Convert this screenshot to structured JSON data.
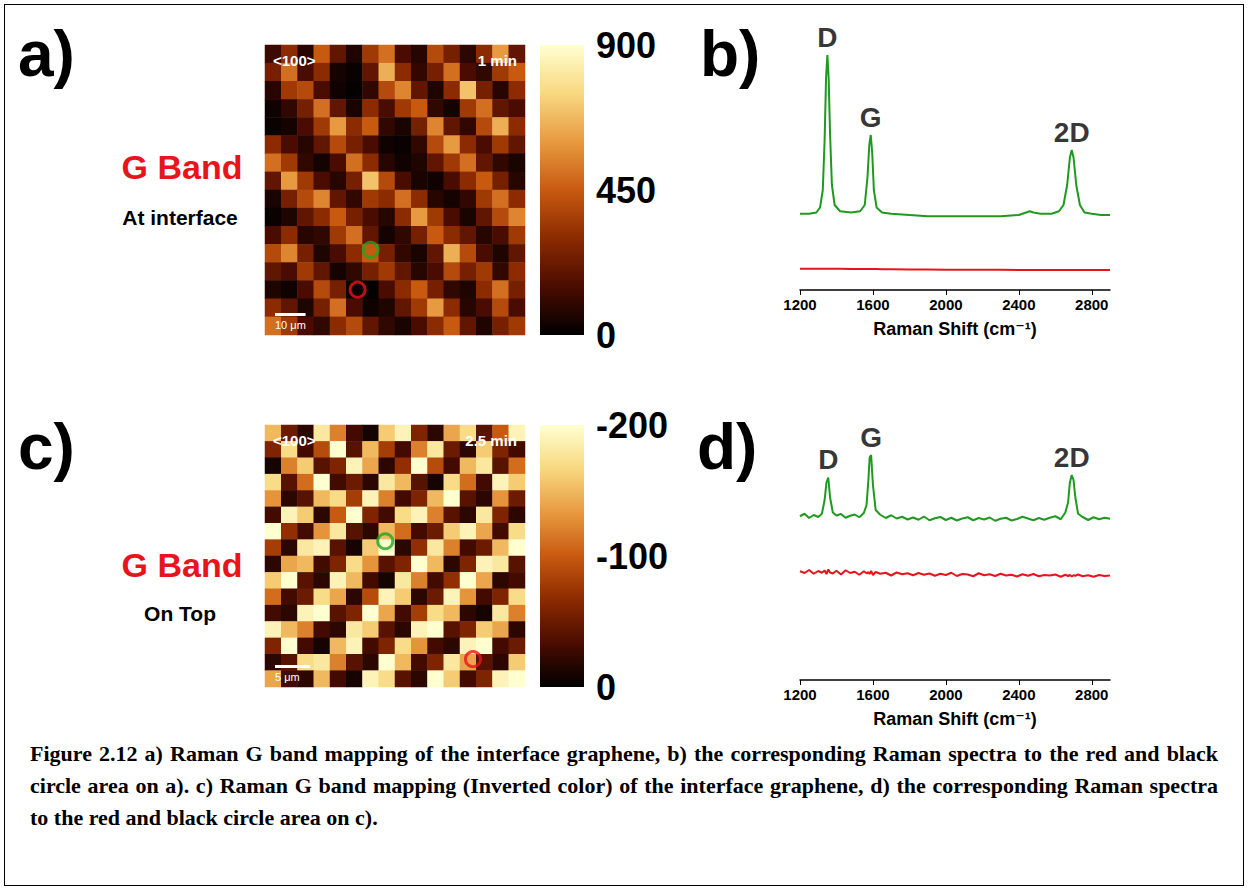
{
  "chart_data": [
    {
      "type": "heatmap",
      "panel": "a)",
      "title": "G Band",
      "subtitle": "At interface",
      "labels": [
        "<100>",
        "1 min"
      ],
      "scale_bar": {
        "label": "10 μm",
        "length": 10
      },
      "extent": 85,
      "colorbar": {
        "range": [
          0,
          900
        ],
        "ticks": [
          0,
          450,
          900
        ]
      },
      "highlights": [
        {
          "x": 6.5,
          "y": 11.3,
          "color": "#1fa51f"
        },
        {
          "x": 5.7,
          "y": 13.5,
          "color": "#e8141c"
        }
      ],
      "cells": [
        [
          120,
          300,
          80,
          450,
          200,
          60,
          350,
          500,
          150,
          80,
          400,
          250,
          90,
          300,
          600,
          200
        ],
        [
          250,
          500,
          150,
          300,
          40,
          20,
          200,
          650,
          300,
          100,
          250,
          500,
          150,
          100,
          350,
          450
        ],
        [
          80,
          350,
          400,
          150,
          30,
          10,
          100,
          400,
          550,
          200,
          60,
          300,
          700,
          250,
          80,
          300
        ],
        [
          30,
          100,
          250,
          500,
          200,
          50,
          300,
          150,
          350,
          450,
          100,
          40,
          350,
          500,
          200,
          150
        ],
        [
          20,
          40,
          150,
          350,
          600,
          300,
          450,
          100,
          50,
          250,
          550,
          200,
          100,
          400,
          650,
          300
        ],
        [
          300,
          150,
          80,
          200,
          400,
          250,
          150,
          30,
          20,
          100,
          400,
          600,
          300,
          150,
          350,
          200
        ],
        [
          500,
          350,
          100,
          40,
          150,
          500,
          300,
          80,
          30,
          60,
          200,
          350,
          500,
          200,
          100,
          50
        ],
        [
          200,
          600,
          350,
          150,
          80,
          250,
          700,
          400,
          150,
          50,
          30,
          150,
          300,
          450,
          250,
          80
        ],
        [
          50,
          250,
          400,
          550,
          200,
          100,
          350,
          300,
          500,
          300,
          80,
          40,
          100,
          350,
          500,
          300
        ],
        [
          20,
          60,
          200,
          300,
          450,
          250,
          150,
          80,
          300,
          600,
          350,
          150,
          50,
          200,
          400,
          550
        ],
        [
          150,
          300,
          80,
          100,
          350,
          500,
          200,
          40,
          100,
          250,
          450,
          300,
          200,
          80,
          150,
          350
        ],
        [
          400,
          550,
          250,
          60,
          150,
          300,
          450,
          250,
          100,
          50,
          200,
          650,
          400,
          150,
          60,
          200
        ],
        [
          200,
          150,
          350,
          200,
          40,
          100,
          250,
          350,
          200,
          80,
          150,
          400,
          250,
          350,
          100,
          300
        ],
        [
          60,
          30,
          150,
          400,
          250,
          20,
          10,
          150,
          300,
          450,
          250,
          100,
          60,
          300,
          500,
          250
        ],
        [
          300,
          200,
          60,
          250,
          500,
          150,
          30,
          60,
          200,
          350,
          600,
          300,
          80,
          150,
          400,
          150
        ],
        [
          500,
          350,
          150,
          100,
          300,
          400,
          200,
          100,
          50,
          150,
          300,
          450,
          200,
          60,
          250,
          350
        ]
      ]
    },
    {
      "type": "line",
      "panel": "b)",
      "xlabel": "Raman Shift (cm⁻¹)",
      "xlim": [
        1200,
        2900
      ],
      "xticks": [
        1200,
        1600,
        2000,
        2400,
        2800
      ],
      "ylim": [
        0,
        100
      ],
      "tick_labels": "x",
      "x": [
        1200,
        1250,
        1290,
        1310,
        1325,
        1335,
        1343,
        1350,
        1357,
        1365,
        1375,
        1390,
        1420,
        1480,
        1530,
        1555,
        1570,
        1580,
        1588,
        1596,
        1605,
        1620,
        1650,
        1700,
        1800,
        1900,
        2000,
        2100,
        2200,
        2300,
        2400,
        2440,
        2460,
        2480,
        2520,
        2580,
        2620,
        2645,
        2665,
        2680,
        2690,
        2700,
        2715,
        2735,
        2760,
        2800,
        2850,
        2900
      ],
      "series": [
        {
          "color": "#1f9a1f",
          "values": [
            30.5,
            30.5,
            31,
            33,
            40,
            60,
            85,
            94,
            85,
            62,
            42,
            34,
            31.5,
            31,
            31.5,
            34,
            45,
            58,
            62,
            55,
            40,
            33,
            31,
            30.5,
            30,
            29.5,
            29.5,
            29.5,
            29.5,
            29.5,
            30,
            31,
            31.5,
            31,
            30.5,
            30.5,
            31.5,
            34,
            42,
            53,
            56,
            53,
            42,
            34,
            31,
            30.5,
            30,
            30
          ]
        },
        {
          "color": "#e8141c",
          "values": [
            8.5,
            8.5,
            8.5,
            8.5,
            8.5,
            8.5,
            8.5,
            8.5,
            8.5,
            8.5,
            8.5,
            8.5,
            8.5,
            8.4,
            8.4,
            8.4,
            8.4,
            8.4,
            8.4,
            8.4,
            8.4,
            8.4,
            8.3,
            8.3,
            8.2,
            8.2,
            8.1,
            8.1,
            8.1,
            8.1,
            8,
            8,
            8,
            8,
            8,
            8,
            8,
            8,
            8,
            8,
            8,
            8,
            8,
            8,
            8,
            8,
            8,
            8
          ]
        }
      ],
      "annotations": [
        {
          "text": "D",
          "x": 1350,
          "y": 94
        },
        {
          "text": "G",
          "x": 1588,
          "y": 62
        },
        {
          "text": "2D",
          "x": 2690,
          "y": 56
        }
      ]
    },
    {
      "type": "heatmap",
      "panel": "c)",
      "title": "G Band",
      "subtitle": "On Top",
      "labels": [
        "<100>",
        "2.5 min"
      ],
      "scale_bar": {
        "label": "5 μm",
        "length": 5
      },
      "extent": 37,
      "colorbar": {
        "range": [
          0,
          -200
        ],
        "ticks": [
          0,
          -100,
          -200
        ]
      },
      "highlights": [
        {
          "x": 7.4,
          "y": 7.1,
          "color": "#1fa51f"
        },
        {
          "x": 12.8,
          "y": 14.3,
          "color": "#e8141c"
        }
      ],
      "cells": [
        [
          -150,
          -50,
          -20,
          -180,
          -120,
          -30,
          -10,
          -160,
          -190,
          -60,
          -20,
          -140,
          -170,
          -40,
          -100,
          -190
        ],
        [
          -60,
          -170,
          -30,
          -90,
          -200,
          -40,
          -150,
          -80,
          -30,
          -120,
          -180,
          -50,
          -20,
          -160,
          -60,
          -30
        ],
        [
          -10,
          -120,
          -160,
          -40,
          -60,
          -190,
          -140,
          -20,
          -70,
          -200,
          -90,
          -30,
          -150,
          -180,
          -40,
          -110
        ],
        [
          -170,
          -40,
          -110,
          -200,
          -30,
          -50,
          -20,
          -180,
          -150,
          -40,
          -10,
          -170,
          -110,
          -30,
          -190,
          -160
        ],
        [
          -130,
          -20,
          -40,
          -150,
          -170,
          -80,
          -190,
          -120,
          -30,
          -60,
          -150,
          -200,
          -40,
          -20,
          -130,
          -50
        ],
        [
          -30,
          -190,
          -160,
          -20,
          -100,
          -200,
          -60,
          -30,
          -170,
          -190,
          -120,
          -40,
          -20,
          -180,
          -60,
          -20
        ],
        [
          -200,
          -70,
          -30,
          -130,
          -180,
          -40,
          -20,
          -150,
          -110,
          -30,
          -50,
          -160,
          -190,
          -140,
          -30,
          -170
        ],
        [
          -80,
          -20,
          -180,
          -190,
          -40,
          -10,
          -160,
          -200,
          -20,
          -70,
          -180,
          -120,
          -30,
          -50,
          -150,
          -200
        ],
        [
          -20,
          -140,
          -150,
          -30,
          -60,
          -170,
          -130,
          -40,
          -60,
          -200,
          -150,
          -20,
          -60,
          -190,
          -180,
          -40
        ],
        [
          -160,
          -200,
          -40,
          -20,
          -190,
          -150,
          -30,
          -10,
          -180,
          -120,
          -30,
          -70,
          -200,
          -140,
          -20,
          -30
        ],
        [
          -110,
          -30,
          -50,
          -170,
          -140,
          -20,
          -90,
          -190,
          -160,
          -20,
          -50,
          -190,
          -130,
          -30,
          -60,
          -170
        ],
        [
          -30,
          -20,
          -190,
          -200,
          -40,
          -60,
          -200,
          -140,
          -30,
          -80,
          -170,
          -150,
          -20,
          -10,
          -180,
          -120
        ],
        [
          -190,
          -150,
          -120,
          -30,
          -20,
          -180,
          -160,
          -40,
          -20,
          -190,
          -200,
          -40,
          -60,
          -160,
          -140,
          -20
        ],
        [
          -60,
          -200,
          -30,
          -10,
          -150,
          -190,
          -30,
          -60,
          -170,
          -130,
          -30,
          -20,
          -190,
          -200,
          -30,
          -50
        ],
        [
          -20,
          -40,
          -170,
          -180,
          -120,
          -40,
          -20,
          -200,
          -150,
          -30,
          -60,
          -180,
          -140,
          -40,
          -20,
          -160
        ],
        [
          -140,
          -30,
          -20,
          -150,
          -30,
          -10,
          -190,
          -170,
          -40,
          -20,
          -200,
          -160,
          -30,
          -60,
          -190,
          -200
        ]
      ]
    },
    {
      "type": "line",
      "panel": "d)",
      "xlabel": "Raman Shift (cm⁻¹)",
      "xlim": [
        1200,
        2900
      ],
      "xticks": [
        1200,
        1600,
        2000,
        2400,
        2800
      ],
      "ylim": [
        0,
        100
      ],
      "tick_labels": "x",
      "x": [
        1200,
        1225,
        1250,
        1275,
        1300,
        1320,
        1335,
        1345,
        1355,
        1365,
        1380,
        1400,
        1425,
        1450,
        1475,
        1500,
        1525,
        1550,
        1565,
        1575,
        1582,
        1590,
        1600,
        1615,
        1640,
        1670,
        1700,
        1730,
        1760,
        1790,
        1820,
        1850,
        1880,
        1910,
        1940,
        1970,
        2000,
        2030,
        2060,
        2090,
        2120,
        2150,
        2180,
        2210,
        2240,
        2270,
        2300,
        2330,
        2360,
        2390,
        2420,
        2450,
        2480,
        2510,
        2540,
        2570,
        2600,
        2630,
        2655,
        2670,
        2680,
        2690,
        2700,
        2710,
        2725,
        2750,
        2780,
        2810,
        2840,
        2870,
        2900
      ],
      "series": [
        {
          "color": "#1f9a1f",
          "values": [
            65.5,
            66.5,
            64.8,
            66.0,
            65.2,
            66.5,
            72,
            79,
            81,
            73,
            67,
            65.8,
            66.4,
            64.9,
            65.7,
            66.2,
            65.1,
            66.8,
            70,
            80,
            89,
            90,
            78,
            68,
            66.1,
            64.8,
            65.9,
            64.6,
            65.3,
            64.2,
            65.0,
            64.1,
            65.4,
            63.9,
            64.7,
            65.2,
            64.0,
            64.9,
            63.8,
            64.6,
            65.1,
            63.9,
            64.8,
            64.2,
            65.0,
            63.7,
            64.5,
            64.9,
            63.8,
            64.4,
            65.3,
            64.6,
            63.9,
            64.8,
            64.1,
            64.9,
            65.5,
            64.3,
            67,
            71,
            79,
            82,
            80,
            73,
            66.5,
            65.2,
            64.0,
            65.1,
            64.3,
            64.9,
            64.5
          ]
        },
        {
          "color": "#e8141c",
          "values": [
            43.5,
            42.8,
            44.0,
            42.5,
            43.6,
            42.9,
            43.8,
            42.4,
            44.2,
            43.0,
            42.6,
            43.7,
            42.2,
            43.9,
            42.8,
            43.3,
            42.1,
            43.5,
            42.7,
            43.1,
            42.4,
            43.6,
            42.0,
            43.2,
            42.5,
            42.9,
            41.8,
            43.0,
            42.3,
            42.7,
            41.9,
            42.8,
            42.1,
            42.6,
            41.7,
            42.5,
            42.0,
            42.9,
            41.6,
            42.4,
            42.2,
            41.5,
            42.7,
            41.9,
            42.3,
            41.6,
            42.5,
            41.8,
            42.1,
            41.4,
            42.3,
            41.7,
            42.4,
            41.5,
            42.0,
            41.8,
            42.2,
            41.3,
            42.1,
            41.6,
            42.0,
            41.4,
            41.9,
            41.7,
            42.2,
            41.5,
            41.9,
            41.3,
            42.0,
            41.6,
            41.8
          ]
        }
      ],
      "annotations": [
        {
          "text": "D",
          "x": 1355,
          "y": 81
        },
        {
          "text": "G",
          "x": 1590,
          "y": 90
        },
        {
          "text": "2D",
          "x": 2690,
          "y": 82
        }
      ]
    }
  ],
  "caption": "Figure 2.12 a) Raman G band mapping of the interface graphene, b) the corresponding Raman spectra to the red and black circle area on a). c) Raman G band mapping (Inverted color) of the interface graphene, d) the corresponding Raman spectra to the red and black circle area on c)."
}
